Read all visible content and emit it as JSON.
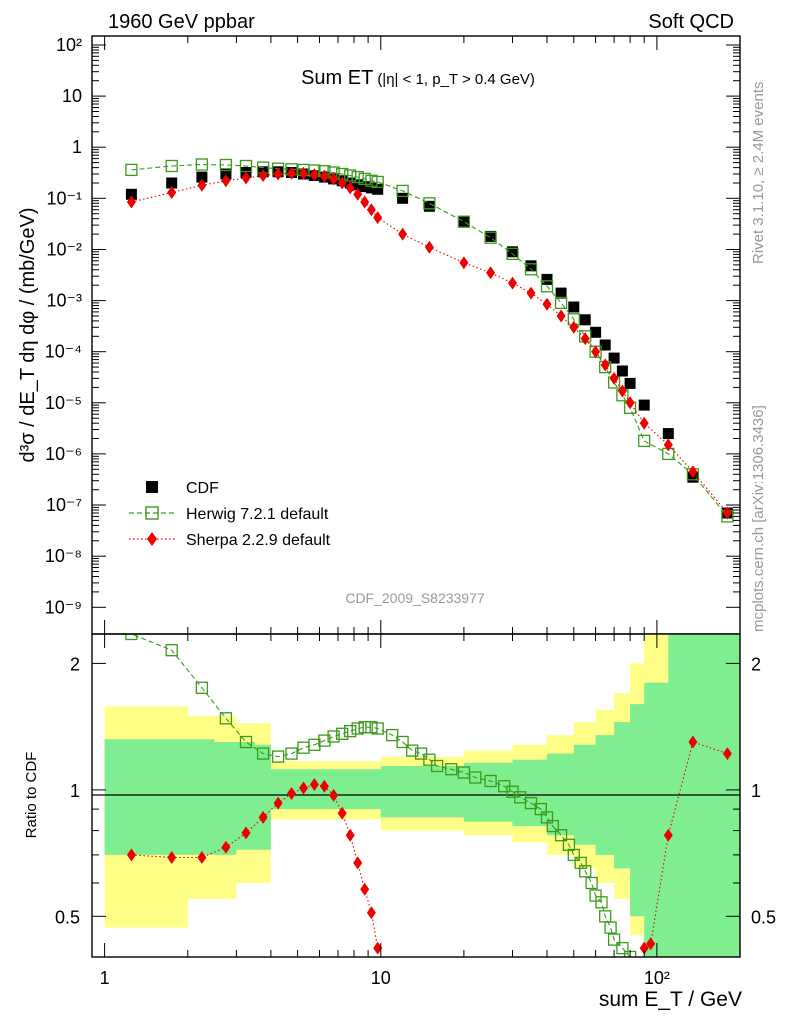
{
  "header": {
    "left": "1960 GeV ppbar",
    "right": "Soft QCD"
  },
  "side_labels": {
    "rivet": "Rivet 3.1.10, ≥ 2.4M events",
    "mcplots": "mcplots.cern.ch [arXiv:1306.3436]"
  },
  "watermark": "CDF_2009_S8233977",
  "chart_data": [
    {
      "type": "scatter",
      "title": "Sum ET",
      "title_cut": "(|η| < 1, p_T > 0.4 GeV)",
      "ylabel": "d³σ / dE_T dη dφ / (mb/GeV)",
      "xlabel": "",
      "xscale": "log",
      "yscale": "log",
      "xlim": [
        0.9,
        200
      ],
      "ylim": [
        3e-10,
        150
      ],
      "x_tick_labels": [
        "1",
        "10",
        "10²"
      ],
      "y_tick_labels": [
        "10⁻⁹",
        "10⁻⁸",
        "10⁻⁷",
        "10⁻⁶",
        "10⁻⁵",
        "10⁻⁴",
        "10⁻³",
        "10⁻²",
        "10⁻¹",
        "1",
        "10",
        "10²"
      ],
      "legend_position": "bottom-left",
      "series": [
        {
          "name": "CDF",
          "color": "#000000",
          "marker": "square-filled",
          "x": [
            1.25,
            1.75,
            2.25,
            2.75,
            3.25,
            3.75,
            4.25,
            4.75,
            5.25,
            5.75,
            6.25,
            6.75,
            7.25,
            7.75,
            8.25,
            8.75,
            9.25,
            9.75,
            12,
            15,
            20,
            25,
            30,
            35,
            40,
            45,
            50,
            55,
            60,
            65,
            70,
            75,
            80,
            90,
            110,
            135,
            180
          ],
          "y": [
            0.12,
            0.2,
            0.26,
            0.3,
            0.32,
            0.33,
            0.33,
            0.32,
            0.3,
            0.28,
            0.26,
            0.24,
            0.22,
            0.2,
            0.185,
            0.17,
            0.16,
            0.15,
            0.1,
            0.07,
            0.035,
            0.018,
            0.009,
            0.0048,
            0.0026,
            0.0014,
            0.00075,
            0.00042,
            0.00024,
            0.000135,
            7.5e-05,
            4.2e-05,
            2.4e-05,
            9e-06,
            2.5e-06,
            3.5e-07,
            7e-08
          ]
        },
        {
          "name": "Herwig 7.2.1 default",
          "color": "#3a9a1a",
          "marker": "square-open",
          "line": "dashed",
          "x": [
            1.25,
            1.75,
            2.25,
            2.75,
            3.25,
            3.75,
            4.25,
            4.75,
            5.25,
            5.75,
            6.25,
            6.75,
            7.25,
            7.75,
            8.25,
            8.75,
            9.25,
            9.75,
            12,
            15,
            20,
            25,
            30,
            35,
            40,
            45,
            50,
            55,
            60,
            65,
            70,
            75,
            80,
            90,
            110,
            135,
            180
          ],
          "y": [
            0.36,
            0.43,
            0.46,
            0.45,
            0.43,
            0.4,
            0.38,
            0.37,
            0.36,
            0.35,
            0.34,
            0.32,
            0.3,
            0.28,
            0.26,
            0.24,
            0.22,
            0.21,
            0.14,
            0.08,
            0.035,
            0.017,
            0.0082,
            0.0041,
            0.0019,
            0.0009,
            0.00043,
            0.0002,
            0.0001,
            5e-05,
            2.5e-05,
            1.4e-05,
            8e-06,
            1.8e-06,
            1e-06,
            4e-07,
            6e-08
          ]
        },
        {
          "name": "Sherpa 2.2.9 default",
          "color": "#ee0000",
          "marker": "diamond-filled",
          "line": "dotted",
          "x": [
            1.25,
            1.75,
            2.25,
            2.75,
            3.25,
            3.75,
            4.25,
            4.75,
            5.25,
            5.75,
            6.25,
            6.75,
            7.25,
            7.75,
            8.25,
            8.75,
            9.25,
            9.75,
            12,
            15,
            20,
            25,
            30,
            35,
            40,
            45,
            50,
            55,
            60,
            65,
            70,
            75,
            80,
            90,
            110,
            135,
            180
          ],
          "y": [
            0.085,
            0.13,
            0.18,
            0.22,
            0.25,
            0.28,
            0.3,
            0.31,
            0.31,
            0.29,
            0.27,
            0.24,
            0.2,
            0.16,
            0.12,
            0.085,
            0.06,
            0.042,
            0.02,
            0.011,
            0.0055,
            0.0035,
            0.0022,
            0.0014,
            0.00085,
            0.0005,
            0.0003,
            0.00018,
            0.0001,
            5.5e-05,
            3e-05,
            1.7e-05,
            1e-05,
            4e-06,
            1.5e-06,
            4.5e-07,
            7e-08
          ]
        }
      ]
    },
    {
      "type": "line",
      "ylabel": "Ratio to CDF",
      "xlabel": "sum E_T / GeV",
      "xscale": "log",
      "xlim": [
        0.9,
        200
      ],
      "ylim": [
        0.4,
        2.35
      ],
      "x_tick_labels": [
        "1",
        "10",
        "10²"
      ],
      "y_tick_labels": [
        "0.5",
        "1",
        "2"
      ],
      "reference": 1,
      "band_colors": {
        "inner": "#7fee90",
        "outer": "#ffff88"
      },
      "bands": {
        "x": [
          1.0,
          1.5,
          2.0,
          2.5,
          3.0,
          3.5,
          4.0,
          10,
          20,
          30,
          40,
          50,
          60,
          70,
          80,
          90,
          110,
          140,
          200
        ],
        "inner_low": [
          0.7,
          0.7,
          0.7,
          0.7,
          0.72,
          0.72,
          0.9,
          0.86,
          0.84,
          0.82,
          0.78,
          0.74,
          0.7,
          0.65,
          0.5,
          0.4,
          0.4,
          0.4,
          0.4
        ],
        "inner_high": [
          1.32,
          1.32,
          1.32,
          1.3,
          1.3,
          1.28,
          1.12,
          1.14,
          1.16,
          1.18,
          1.22,
          1.28,
          1.35,
          1.45,
          1.6,
          1.8,
          2.35,
          2.35,
          2.35
        ],
        "outer_low": [
          0.47,
          0.47,
          0.55,
          0.55,
          0.6,
          0.6,
          0.85,
          0.8,
          0.78,
          0.75,
          0.7,
          0.65,
          0.6,
          0.55,
          0.45,
          0.4,
          0.4,
          0.4,
          0.4
        ],
        "outer_high": [
          1.58,
          1.58,
          1.5,
          1.5,
          1.44,
          1.44,
          1.17,
          1.2,
          1.24,
          1.28,
          1.35,
          1.45,
          1.55,
          1.7,
          2.0,
          2.35,
          2.35,
          2.35,
          2.35
        ]
      },
      "series": [
        {
          "name": "Herwig 7.2.1 default",
          "color": "#3a9a1a",
          "marker": "square-open",
          "line": "dashed",
          "x": [
            1.1,
            1.25,
            1.75,
            2.25,
            2.75,
            3.25,
            3.75,
            4.25,
            4.75,
            5.25,
            5.75,
            6.25,
            6.75,
            7.25,
            7.75,
            8.25,
            8.75,
            9.25,
            9.75,
            11,
            12,
            13,
            14,
            15,
            16,
            18,
            20,
            22,
            25,
            28,
            30,
            32,
            35,
            38,
            40,
            42,
            45,
            48,
            50,
            53,
            55,
            58,
            60,
            63,
            65,
            68,
            70,
            75,
            80
          ],
          "y": [
            2.55,
            2.35,
            2.15,
            1.75,
            1.48,
            1.3,
            1.22,
            1.2,
            1.22,
            1.26,
            1.28,
            1.31,
            1.34,
            1.36,
            1.38,
            1.4,
            1.41,
            1.41,
            1.4,
            1.35,
            1.3,
            1.24,
            1.22,
            1.18,
            1.14,
            1.12,
            1.1,
            1.07,
            1.05,
            1.02,
            0.99,
            0.96,
            0.93,
            0.9,
            0.86,
            0.82,
            0.78,
            0.74,
            0.7,
            0.67,
            0.64,
            0.6,
            0.56,
            0.54,
            0.5,
            0.47,
            0.44,
            0.42,
            0.4
          ]
        },
        {
          "name": "Sherpa 2.2.9 default",
          "color": "#ee0000",
          "marker": "diamond-filled",
          "line": "dotted",
          "x": [
            1.25,
            1.75,
            2.25,
            2.75,
            3.25,
            3.75,
            4.25,
            4.75,
            5.25,
            5.75,
            6.25,
            6.75,
            7.25,
            7.75,
            8.25,
            8.75,
            9.25,
            9.75
          ],
          "y": [
            0.7,
            0.69,
            0.69,
            0.73,
            0.79,
            0.86,
            0.93,
            0.98,
            1.01,
            1.03,
            1.02,
            0.97,
            0.88,
            0.78,
            0.67,
            0.58,
            0.51,
            0.42
          ]
        },
        {
          "name": "Sherpa 2.2.9 default",
          "color": "#ee0000",
          "marker": "diamond-filled",
          "line": "dotted",
          "x": [
            90,
            95,
            110,
            135,
            180
          ],
          "y": [
            0.42,
            0.43,
            0.78,
            1.3,
            1.22
          ]
        }
      ]
    }
  ]
}
